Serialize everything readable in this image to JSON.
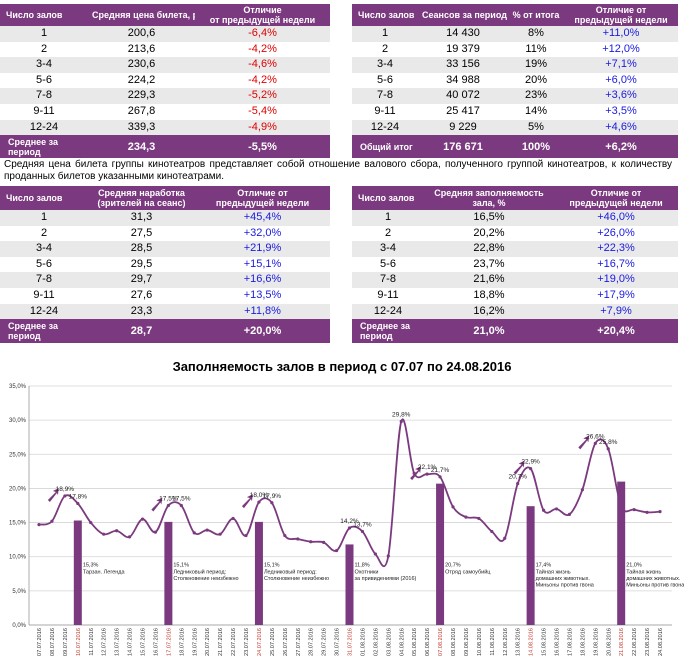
{
  "table_price": {
    "headers": [
      "Число залов",
      "Средняя цена билета, руб",
      "Отличие\nот предыдущей недели"
    ],
    "rows": [
      [
        "1",
        "200,6",
        "-6,4%"
      ],
      [
        "2",
        "213,6",
        "-4,2%"
      ],
      [
        "3-4",
        "230,6",
        "-4,6%"
      ],
      [
        "5-6",
        "224,2",
        "-4,2%"
      ],
      [
        "7-8",
        "229,3",
        "-5,2%"
      ],
      [
        "9-11",
        "267,8",
        "-5,4%"
      ],
      [
        "12-24",
        "339,3",
        "-4,9%"
      ]
    ],
    "footer": [
      "Среднее за период",
      "234,3",
      "-5,5%"
    ]
  },
  "table_sessions": {
    "headers": [
      "Число залов",
      "Сеансов за период",
      "% от итога",
      "Отличие от предыдущей недели"
    ],
    "rows": [
      [
        "1",
        "14 430",
        "8%",
        "+11,0%"
      ],
      [
        "2",
        "19 379",
        "11%",
        "+12,0%"
      ],
      [
        "3-4",
        "33 156",
        "19%",
        "+7,1%"
      ],
      [
        "5-6",
        "34 988",
        "20%",
        "+6,0%"
      ],
      [
        "7-8",
        "40 072",
        "23%",
        "+3,6%"
      ],
      [
        "9-11",
        "25 417",
        "14%",
        "+3,5%"
      ],
      [
        "12-24",
        "9 229",
        "5%",
        "+4,6%"
      ]
    ],
    "footer": [
      "Общий итог",
      "176 671",
      "100%",
      "+6,2%"
    ]
  },
  "note": "Средняя цена билета группы кинотеатров представляет собой отношение валового сбора, полученного группой кинотеатров, к количеству проданных билетов указанными кинотеатрами.",
  "table_load": {
    "headers": [
      "Число залов",
      "Средняя наработка\n(зрителей на сеанс)",
      "Отличие от\nпредыдущей недели"
    ],
    "rows": [
      [
        "1",
        "31,3",
        "+45,4%"
      ],
      [
        "2",
        "27,5",
        "+32,0%"
      ],
      [
        "3-4",
        "28,5",
        "+21,9%"
      ],
      [
        "5-6",
        "29,5",
        "+15,1%"
      ],
      [
        "7-8",
        "29,7",
        "+16,6%"
      ],
      [
        "9-11",
        "27,6",
        "+13,5%"
      ],
      [
        "12-24",
        "23,3",
        "+11,8%"
      ]
    ],
    "footer": [
      "Среднее за период",
      "28,7",
      "+20,0%"
    ]
  },
  "table_fill": {
    "headers": [
      "Число залов",
      "Средняя заполняемость\nзала, %",
      "Отличие от\nпредыдущей недели"
    ],
    "rows": [
      [
        "1",
        "16,5%",
        "+46,0%"
      ],
      [
        "2",
        "20,2%",
        "+26,0%"
      ],
      [
        "3-4",
        "22,8%",
        "+22,3%"
      ],
      [
        "5-6",
        "23,7%",
        "+16,7%"
      ],
      [
        "7-8",
        "21,6%",
        "+19,0%"
      ],
      [
        "9-11",
        "18,8%",
        "+17,9%"
      ],
      [
        "12-24",
        "16,2%",
        "+7,9%"
      ]
    ],
    "footer": [
      "Среднее за период",
      "21,0%",
      "+20,4%"
    ]
  },
  "chart_data": {
    "type": "line",
    "title": "Заполняемость залов в период с 07.07 по 24.08.2016",
    "xlabel": "",
    "ylabel": "",
    "ylim": [
      0,
      35
    ],
    "yticks": [
      "0,0%",
      "5,0%",
      "10,0%",
      "15,0%",
      "20,0%",
      "25,0%",
      "30,0%",
      "35,0%"
    ],
    "categories": [
      "07.07.2016",
      "08.07.2016",
      "09.07.2016",
      "10.07.2016",
      "11.07.2016",
      "12.07.2016",
      "13.07.2016",
      "14.07.2016",
      "15.07.2016",
      "16.07.2016",
      "17.07.2016",
      "18.07.2016",
      "19.07.2016",
      "20.07.2016",
      "21.07.2016",
      "22.07.2016",
      "23.07.2016",
      "24.07.2016",
      "25.07.2016",
      "26.07.2016",
      "27.07.2016",
      "28.07.2016",
      "29.07.2016",
      "30.07.2016",
      "31.07.2016",
      "01.08.2016",
      "02.08.2016",
      "03.08.2016",
      "04.08.2016",
      "05.08.2016",
      "06.08.2016",
      "07.08.2016",
      "08.08.2016",
      "09.08.2016",
      "10.08.2016",
      "11.08.2016",
      "12.08.2016",
      "13.08.2016",
      "14.08.2016",
      "15.08.2016",
      "16.08.2016",
      "17.08.2016",
      "18.08.2016",
      "19.08.2016",
      "20.08.2016",
      "21.08.2016",
      "22.08.2016",
      "23.08.2016",
      "24.08.2016"
    ],
    "red_dates": [
      "10.07.2016",
      "17.07.2016",
      "24.07.2016",
      "31.07.2016",
      "07.08.2016",
      "14.08.2016",
      "21.08.2016"
    ],
    "series": [
      {
        "name": "Заполняемость",
        "values": [
          14.7,
          15.2,
          18.9,
          17.8,
          15.0,
          13.3,
          13.8,
          12.9,
          15.5,
          13.6,
          17.5,
          17.5,
          13.5,
          13.9,
          13.3,
          15.6,
          13.1,
          18.0,
          17.9,
          13.1,
          12.6,
          12.2,
          12.1,
          10.9,
          14.2,
          13.7,
          10.4,
          10.1,
          29.8,
          22.2,
          22.1,
          21.7,
          17.3,
          15.8,
          15.6,
          13.7,
          12.7,
          20.7,
          22.9,
          16.8,
          17.0,
          16.2,
          19.8,
          26.6,
          25.8,
          17.4,
          16.9,
          16.5,
          16.6
        ]
      }
    ],
    "point_labels": [
      {
        "index": 2,
        "label": "18,9%"
      },
      {
        "index": 3,
        "label": "17,8%"
      },
      {
        "index": 10,
        "label": "17,5%"
      },
      {
        "index": 11,
        "label": "17,5%"
      },
      {
        "index": 17,
        "label": "18,0%"
      },
      {
        "index": 18,
        "label": "17,9%"
      },
      {
        "index": 24,
        "label": "14,2%"
      },
      {
        "index": 25,
        "label": "13,7%"
      },
      {
        "index": 28,
        "label": "29,8%"
      },
      {
        "index": 30,
        "label": "22,1%"
      },
      {
        "index": 31,
        "label": "21,7%"
      },
      {
        "index": 37,
        "label": "20,7%"
      },
      {
        "index": 38,
        "label": "22,9%"
      },
      {
        "index": 43,
        "label": "26,6%"
      },
      {
        "index": 44,
        "label": "25,8%"
      }
    ],
    "release_bars": [
      {
        "index": 3,
        "value": 15.3,
        "label": "15,3%",
        "films": "Тарзан. Легенда"
      },
      {
        "index": 10,
        "value": 15.1,
        "label": "15,1%",
        "films": "Ледниковый период:\nСтолкновение неизбежно"
      },
      {
        "index": 17,
        "value": 15.1,
        "label": "15,1%",
        "films": "Ледниковый период:\nСтолкновение неизбежно"
      },
      {
        "index": 24,
        "value": 11.8,
        "label": "11,8%",
        "films": "Охотники\nза привидениями (2016)"
      },
      {
        "index": 31,
        "value": 20.7,
        "label": "20,7%",
        "films": "Отряд самоубийц"
      },
      {
        "index": 38,
        "value": 17.4,
        "label": "17,4%",
        "films": "Тайная жизнь\nдомашних животных.\nМиньоны против гвона"
      },
      {
        "index": 45,
        "value": 21.0,
        "label": "21,0%",
        "films": "Тайная жизнь\nдомашних животных.\nМиньоны против гвона"
      }
    ],
    "trend_arrows": [
      2,
      10,
      17,
      30,
      38,
      43
    ],
    "colors": {
      "line": "#7b3a7f",
      "bars": "#7b3a7f",
      "header": "#7b3a7f",
      "negative": "#e00000",
      "positive": "#1a1adf",
      "date_red": "#c0392b"
    }
  }
}
